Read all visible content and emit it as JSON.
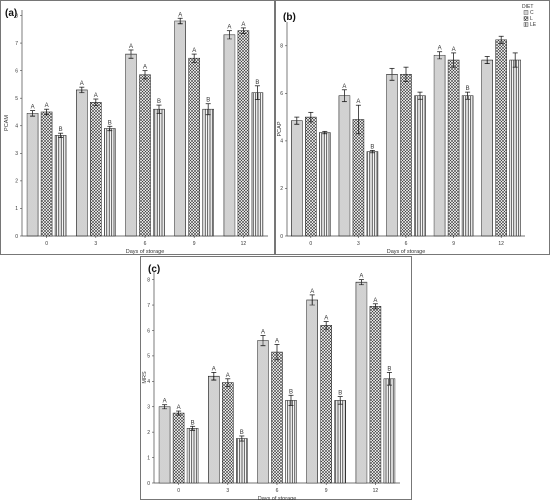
{
  "chart_data": [
    {
      "panel": "(a)",
      "type": "bar",
      "categories": [
        "0",
        "3",
        "6",
        "9",
        "12"
      ],
      "xlabel": "Days of storage",
      "ylabel": "PCAM",
      "ylim": [
        0,
        8.2
      ],
      "yticks": [
        0,
        1,
        2,
        3,
        4,
        5,
        6,
        7,
        8
      ],
      "series": [
        {
          "values": [
            4.45,
            5.3,
            6.6,
            7.8,
            7.3
          ],
          "errors": [
            0.1,
            0.1,
            0.15,
            0.1,
            0.15
          ],
          "labels": [
            "A",
            "A",
            "A",
            "A",
            "A"
          ]
        },
        {
          "values": [
            4.5,
            4.85,
            5.85,
            6.45,
            7.45
          ],
          "errors": [
            0.1,
            0.12,
            0.15,
            0.15,
            0.1
          ],
          "labels": [
            "A",
            "A",
            "A",
            "A",
            "A"
          ]
        },
        {
          "values": [
            3.65,
            3.9,
            4.6,
            4.6,
            5.2
          ],
          "errors": [
            0.08,
            0.08,
            0.15,
            0.2,
            0.25
          ],
          "labels": [
            "B",
            "B",
            "B",
            "B",
            "B"
          ]
        }
      ]
    },
    {
      "panel": "(b)",
      "type": "bar",
      "categories": [
        "0",
        "3",
        "6",
        "9",
        "12"
      ],
      "xlabel": "Days of storage",
      "ylabel": "PCAP",
      "ylim": [
        0,
        9
      ],
      "yticks": [
        0,
        2,
        4,
        6,
        8
      ],
      "legend": {
        "title": "DIET",
        "entries": [
          "C",
          "L",
          "LE"
        ],
        "position": "top-right"
      },
      "series": [
        {
          "values": [
            4.85,
            5.9,
            6.8,
            7.6,
            7.4
          ],
          "errors": [
            0.15,
            0.25,
            0.25,
            0.15,
            0.15
          ],
          "labels": [
            "",
            "A",
            "",
            "A",
            ""
          ]
        },
        {
          "values": [
            5.0,
            4.9,
            6.8,
            7.4,
            8.25
          ],
          "errors": [
            0.2,
            0.6,
            0.3,
            0.3,
            0.15
          ],
          "labels": [
            "",
            "A",
            "",
            "A",
            ""
          ]
        },
        {
          "values": [
            4.35,
            3.55,
            5.9,
            5.9,
            7.4
          ],
          "errors": [
            0.05,
            0.05,
            0.15,
            0.15,
            0.3
          ],
          "labels": [
            "",
            "B",
            "",
            "B",
            ""
          ]
        }
      ]
    },
    {
      "panel": "(c)",
      "type": "bar",
      "categories": [
        "0",
        "3",
        "6",
        "9",
        "12"
      ],
      "xlabel": "Days of storage",
      "ylabel": "MRS",
      "ylim": [
        0,
        8.3
      ],
      "yticks": [
        0,
        1,
        2,
        3,
        4,
        5,
        6,
        7,
        8
      ],
      "series": [
        {
          "values": [
            3.0,
            4.2,
            5.6,
            7.2,
            7.9
          ],
          "errors": [
            0.08,
            0.15,
            0.2,
            0.2,
            0.1
          ],
          "labels": [
            "A",
            "A",
            "A",
            "A",
            "A"
          ]
        },
        {
          "values": [
            2.75,
            3.95,
            5.15,
            6.2,
            6.95
          ],
          "errors": [
            0.08,
            0.15,
            0.3,
            0.15,
            0.1
          ],
          "labels": [
            "A",
            "A",
            "A",
            "A",
            "A"
          ]
        },
        {
          "values": [
            2.15,
            1.75,
            3.25,
            3.25,
            4.1
          ],
          "errors": [
            0.08,
            0.1,
            0.2,
            0.15,
            0.25
          ],
          "labels": [
            "B",
            "B",
            "B",
            "B",
            "B"
          ]
        }
      ]
    }
  ],
  "patterns": [
    "dots",
    "crosshatch",
    "vlines"
  ]
}
